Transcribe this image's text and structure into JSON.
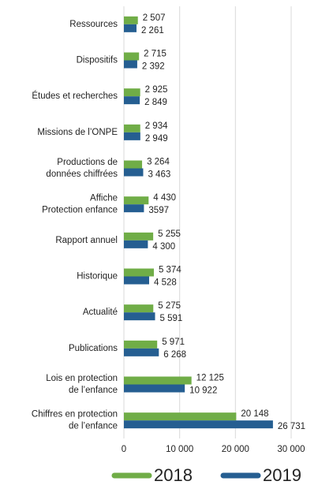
{
  "chart_data": {
    "type": "barh",
    "categories": [
      "Ressources",
      "Dispositifs",
      "Études et recherches",
      "Missions de l’ONPE",
      "Productions de\ndonnées chiffrées",
      "Affiche\nProtection enfance",
      "Rapport annuel",
      "Historique",
      "Actualité",
      "Publications",
      "Lois en protection\nde l’enfance",
      "Chiffres en protection\nde l’enfance"
    ],
    "series": [
      {
        "name": "2018",
        "color": "#70ad47",
        "values": [
          2507,
          2715,
          2925,
          2934,
          3264,
          4430,
          5255,
          5374,
          5275,
          5971,
          12125,
          20148
        ],
        "value_labels": [
          "2 507",
          "2 715",
          "2 925",
          "2 934",
          "3 264",
          "4 430",
          "5 255",
          "5 374",
          "5 275",
          "5 971",
          "12 125",
          "20 148"
        ]
      },
      {
        "name": "2019",
        "color": "#255e91",
        "values": [
          2261,
          2392,
          2849,
          2949,
          3463,
          3597,
          4300,
          4528,
          5591,
          6268,
          10922,
          26731
        ],
        "value_labels": [
          "2 261",
          "2 392",
          "2 849",
          "2 949",
          "3 463",
          "3597",
          "4 300",
          "4 528",
          "5 591",
          "6 268",
          "10 922",
          "26 731"
        ]
      }
    ],
    "xlim": [
      0,
      30000
    ],
    "xticks": [
      0,
      {
        "value": 10000,
        "label": "10 000"
      },
      {
        "value": 20000,
        "label": "20 000"
      },
      {
        "value": 30000,
        "label": "30 000"
      }
    ],
    "grid": true,
    "legend": "bottom"
  }
}
